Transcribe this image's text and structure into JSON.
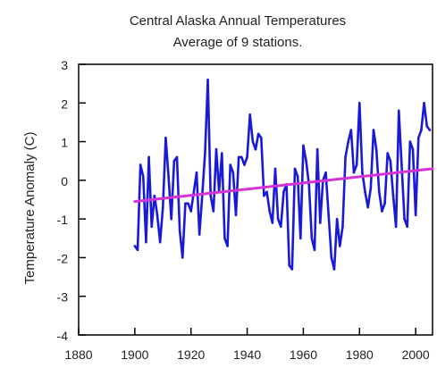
{
  "chart_data": {
    "type": "line",
    "title": "Central Alaska Annual Temperatures",
    "subtitle": "Average of 9 stations.",
    "xlabel": "",
    "ylabel": "Temperature Anomaly (C)",
    "xlim": [
      1880,
      2006
    ],
    "ylim": [
      -4,
      3
    ],
    "x_ticks": [
      1880,
      1900,
      1920,
      1940,
      1960,
      1980,
      2000
    ],
    "y_ticks": [
      3,
      2,
      1,
      0,
      -1,
      -2,
      -3,
      -4
    ],
    "grid": false,
    "colors": {
      "series": "#1a1ad6",
      "trend": "#d633d6",
      "axis": "#000000"
    },
    "series": [
      {
        "role": "annual-anomaly",
        "x": [
          1900,
          1901,
          1902,
          1903,
          1904,
          1905,
          1906,
          1907,
          1908,
          1909,
          1910,
          1911,
          1912,
          1913,
          1914,
          1915,
          1916,
          1917,
          1918,
          1919,
          1920,
          1921,
          1922,
          1923,
          1924,
          1925,
          1926,
          1927,
          1928,
          1929,
          1930,
          1931,
          1932,
          1933,
          1934,
          1935,
          1936,
          1937,
          1938,
          1939,
          1940,
          1941,
          1942,
          1943,
          1944,
          1945,
          1946,
          1947,
          1948,
          1949,
          1950,
          1951,
          1952,
          1953,
          1954,
          1955,
          1956,
          1957,
          1958,
          1959,
          1960,
          1961,
          1962,
          1963,
          1964,
          1965,
          1966,
          1967,
          1968,
          1969,
          1970,
          1971,
          1972,
          1973,
          1974,
          1975,
          1976,
          1977,
          1978,
          1979,
          1980,
          1981,
          1982,
          1983,
          1984,
          1985,
          1986,
          1987,
          1988,
          1989,
          1990,
          1991,
          1992,
          1993,
          1994,
          1995,
          1996,
          1997,
          1998,
          1999,
          2000,
          2001,
          2002,
          2003,
          2004,
          2005
        ],
        "values": [
          -1.7,
          -1.8,
          0.4,
          0.1,
          -1.6,
          0.6,
          -1.2,
          -0.4,
          -0.9,
          -1.6,
          -0.7,
          1.1,
          0.1,
          -1.0,
          0.5,
          0.6,
          -1.3,
          -2.0,
          -0.6,
          -0.6,
          -0.8,
          -0.3,
          0.2,
          -1.4,
          -0.4,
          0.7,
          2.6,
          -0.4,
          -0.8,
          0.8,
          -0.3,
          0.7,
          -1.5,
          -1.7,
          0.4,
          0.2,
          -0.9,
          0.6,
          0.6,
          0.4,
          0.6,
          1.7,
          1.0,
          0.8,
          1.2,
          1.1,
          -0.4,
          -0.3,
          -0.8,
          -1.1,
          0.3,
          -1.0,
          -1.2,
          -0.3,
          -0.1,
          -2.2,
          -2.3,
          0.3,
          0.1,
          -1.5,
          0.9,
          0.5,
          -0.1,
          -1.5,
          -1.8,
          0.8,
          -1.1,
          0.0,
          0.2,
          -0.9,
          -2.0,
          -2.3,
          -1.0,
          -1.7,
          -1.2,
          0.6,
          1.0,
          1.3,
          0.2,
          0.4,
          2.0,
          0.2,
          -0.3,
          -0.7,
          -0.2,
          1.3,
          0.8,
          -0.3,
          -0.8,
          -0.6,
          0.7,
          0.5,
          -0.4,
          -1.2,
          1.8,
          0.4,
          -1.0,
          -1.2,
          1.0,
          0.8,
          -0.9,
          1.1,
          1.3,
          2.0,
          1.4,
          1.3
        ]
      },
      {
        "role": "linear-trend",
        "x": [
          1900,
          2006
        ],
        "values": [
          -0.55,
          0.3
        ]
      }
    ]
  }
}
